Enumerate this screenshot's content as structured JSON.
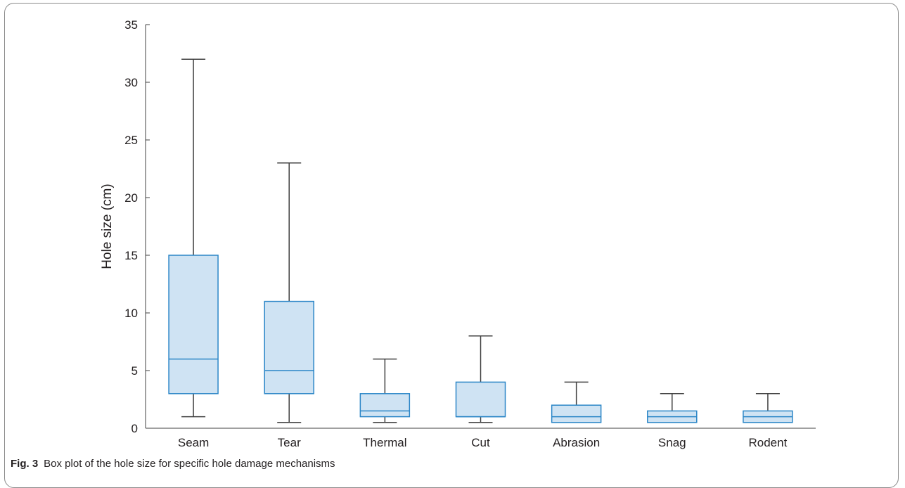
{
  "figure": {
    "label": "Fig. 3",
    "caption": "Box plot of the hole size for specific hole damage mechanisms"
  },
  "chart_data": {
    "type": "box",
    "title": "",
    "xlabel": "",
    "ylabel": "Hole size (cm)",
    "ylim": [
      0,
      35
    ],
    "yticks": [
      0,
      5,
      10,
      15,
      20,
      25,
      30,
      35
    ],
    "grid": false,
    "categories": [
      "Seam",
      "Tear",
      "Thermal",
      "Cut",
      "Abrasion",
      "Snag",
      "Rodent"
    ],
    "boxes": [
      {
        "category": "Seam",
        "min": 1,
        "q1": 3,
        "median": 6,
        "q3": 15,
        "max": 32
      },
      {
        "category": "Tear",
        "min": 0.5,
        "q1": 3,
        "median": 5,
        "q3": 11,
        "max": 23
      },
      {
        "category": "Thermal",
        "min": 0.5,
        "q1": 1,
        "median": 1.5,
        "q3": 3,
        "max": 6
      },
      {
        "category": "Cut",
        "min": 0.5,
        "q1": 1,
        "median": 1,
        "q3": 4,
        "max": 8
      },
      {
        "category": "Abrasion",
        "min": 0.5,
        "q1": 0.5,
        "median": 1,
        "q3": 2,
        "max": 4
      },
      {
        "category": "Snag",
        "min": 0.5,
        "q1": 0.5,
        "median": 1,
        "q3": 1.5,
        "max": 3
      },
      {
        "category": "Rodent",
        "min": 0.5,
        "q1": 0.5,
        "median": 1,
        "q3": 1.5,
        "max": 3
      }
    ],
    "colors": {
      "box_fill": "#cfe3f3",
      "box_stroke": "#2b86c7",
      "whisker": "#404040",
      "axis": "#404040"
    }
  }
}
